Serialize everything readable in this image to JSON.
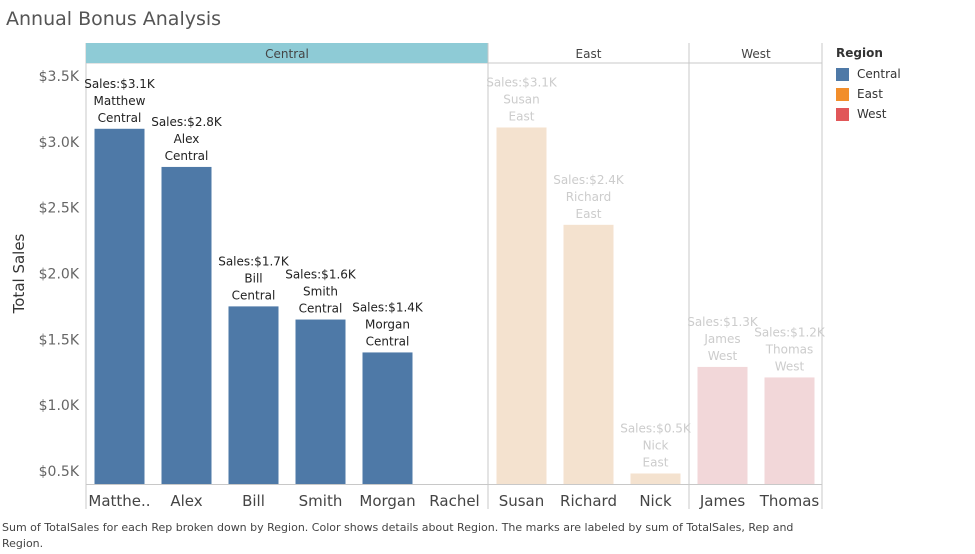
{
  "title": "Annual Bonus Analysis",
  "footer": "Sum of TotalSales for each Rep broken down by Region.  Color shows details about Region.  The marks are labeled by sum of TotalSales, Rep and Region.",
  "legend": {
    "title": "Region",
    "items": [
      {
        "label": "Central",
        "color": "#4e79a7"
      },
      {
        "label": "East",
        "color": "#f28e2b"
      },
      {
        "label": "West",
        "color": "#e15759"
      }
    ]
  },
  "colors": {
    "header_central": "#8ecbd6",
    "central_bar": "#4e79a7",
    "east_bar": "#f4e2cf",
    "west_bar": "#f2d7d9",
    "muted_label": "#cccccc",
    "dark_label": "#222222"
  },
  "chart_data": {
    "type": "bar",
    "ylabel": "Total Sales",
    "ylim": [
      400,
      3600
    ],
    "yticks": [
      500,
      1000,
      1500,
      2000,
      2500,
      3000,
      3500
    ],
    "ytick_labels": [
      "$0.5K",
      "$1.0K",
      "$1.5K",
      "$2.0K",
      "$2.5K",
      "$3.0K",
      "$3.5K"
    ],
    "panels": [
      {
        "region": "Central",
        "highlighted": true,
        "bars": [
          {
            "rep": "Matthew",
            "tick": "Matthe..",
            "value": 3100,
            "sales_label": "Sales:$3.1K"
          },
          {
            "rep": "Alex",
            "tick": "Alex",
            "value": 2810,
            "sales_label": "Sales:$2.8K"
          },
          {
            "rep": "Bill",
            "tick": "Bill",
            "value": 1750,
            "sales_label": "Sales:$1.7K"
          },
          {
            "rep": "Smith",
            "tick": "Smith",
            "value": 1650,
            "sales_label": "Sales:$1.6K"
          },
          {
            "rep": "Morgan",
            "tick": "Morgan",
            "value": 1400,
            "sales_label": "Sales:$1.4K"
          },
          {
            "rep": "Rachel",
            "tick": "Rachel",
            "value": null,
            "sales_label": ""
          }
        ]
      },
      {
        "region": "East",
        "highlighted": false,
        "bars": [
          {
            "rep": "Susan",
            "tick": "Susan",
            "value": 3110,
            "sales_label": "Sales:$3.1K"
          },
          {
            "rep": "Richard",
            "tick": "Richard",
            "value": 2370,
            "sales_label": "Sales:$2.4K"
          },
          {
            "rep": "Nick",
            "tick": "Nick",
            "value": 480,
            "sales_label": "Sales:$0.5K"
          }
        ]
      },
      {
        "region": "West",
        "highlighted": false,
        "bars": [
          {
            "rep": "James",
            "tick": "James",
            "value": 1290,
            "sales_label": "Sales:$1.3K"
          },
          {
            "rep": "Thomas",
            "tick": "Thomas",
            "value": 1210,
            "sales_label": "Sales:$1.2K"
          }
        ]
      }
    ]
  }
}
